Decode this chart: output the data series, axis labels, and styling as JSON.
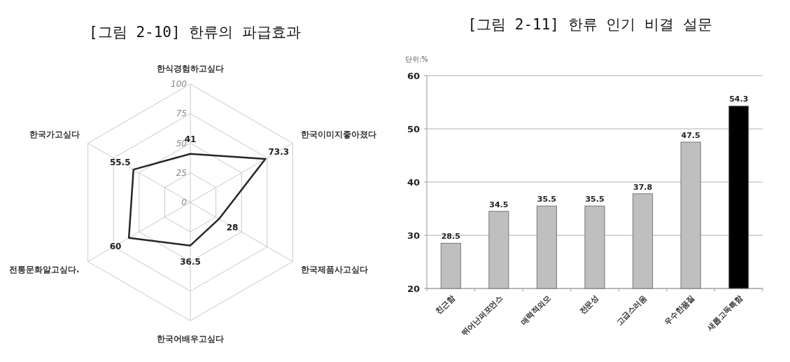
{
  "chart_data": [
    {
      "type": "radar",
      "title": "[그림 2-10] 한류의 파급효과",
      "categories": [
        "한식경험하고싶다",
        "한국이미지좋아졌다",
        "한국제품사고싶다",
        "한국어배우고싶다",
        "전통문화알고싶다.",
        "한국가고싶다"
      ],
      "series": [
        {
          "color": "#262626",
          "values": [
            41,
            73.3,
            28,
            36.5,
            60,
            55.5
          ]
        }
      ],
      "ylim": [
        0,
        100
      ],
      "yticks": [
        0,
        25,
        50,
        75,
        100
      ],
      "data_labels": true,
      "grid": true
    },
    {
      "type": "bar",
      "title": "[그림 2-11] 한류 인기 비결 설문",
      "annotations": [
        "단위:%"
      ],
      "categories": [
        "친근함",
        "뛰어난퍼포먼스",
        "매력적외모",
        "전문성",
        "고급스러움",
        "우수한품질",
        "새롭고독특함"
      ],
      "values": [
        28.5,
        34.5,
        35.5,
        35.5,
        37.8,
        47.5,
        54.3
      ],
      "colors": [
        "#bfbfbf",
        "#bfbfbf",
        "#bfbfbf",
        "#bfbfbf",
        "#bfbfbf",
        "#bfbfbf",
        "#000000"
      ],
      "ylim": [
        20,
        60
      ],
      "yticks": [
        20,
        30,
        40,
        50,
        60
      ],
      "grid": "y",
      "data_labels": true
    }
  ]
}
